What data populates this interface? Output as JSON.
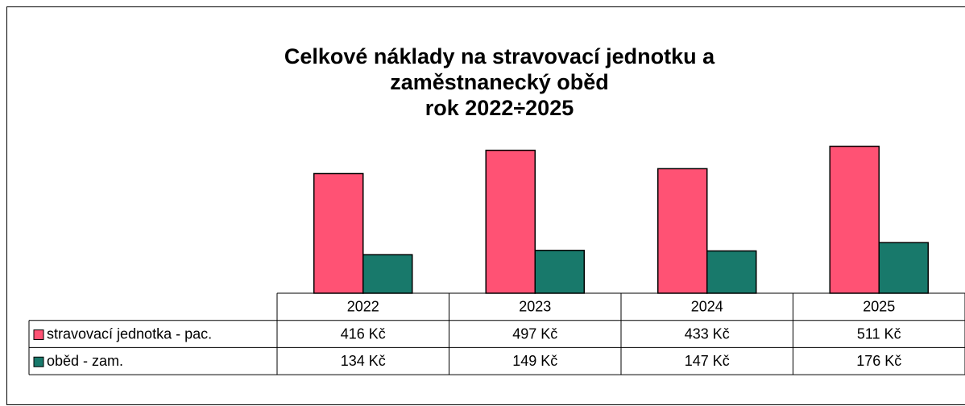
{
  "chart_data": {
    "type": "bar",
    "title": [
      "Celkové náklady na stravovací jednotku a",
      "zaměstnanecký oběd",
      "rok 2022÷2025"
    ],
    "categories": [
      "2022",
      "2023",
      "2024",
      "2025"
    ],
    "series": [
      {
        "name": "stravovací jednotka - pac.",
        "color": "#ff5274",
        "values": [
          416,
          497,
          433,
          511
        ],
        "value_labels": [
          "416 Kč",
          "497 Kč",
          "433 Kč",
          "511 Kč"
        ]
      },
      {
        "name": "oběd - zam.",
        "color": "#18796b",
        "values": [
          134,
          149,
          147,
          176
        ],
        "value_labels": [
          "134 Kč",
          "149 Kč",
          "147 Kč",
          "176 Kč"
        ]
      }
    ]
  }
}
